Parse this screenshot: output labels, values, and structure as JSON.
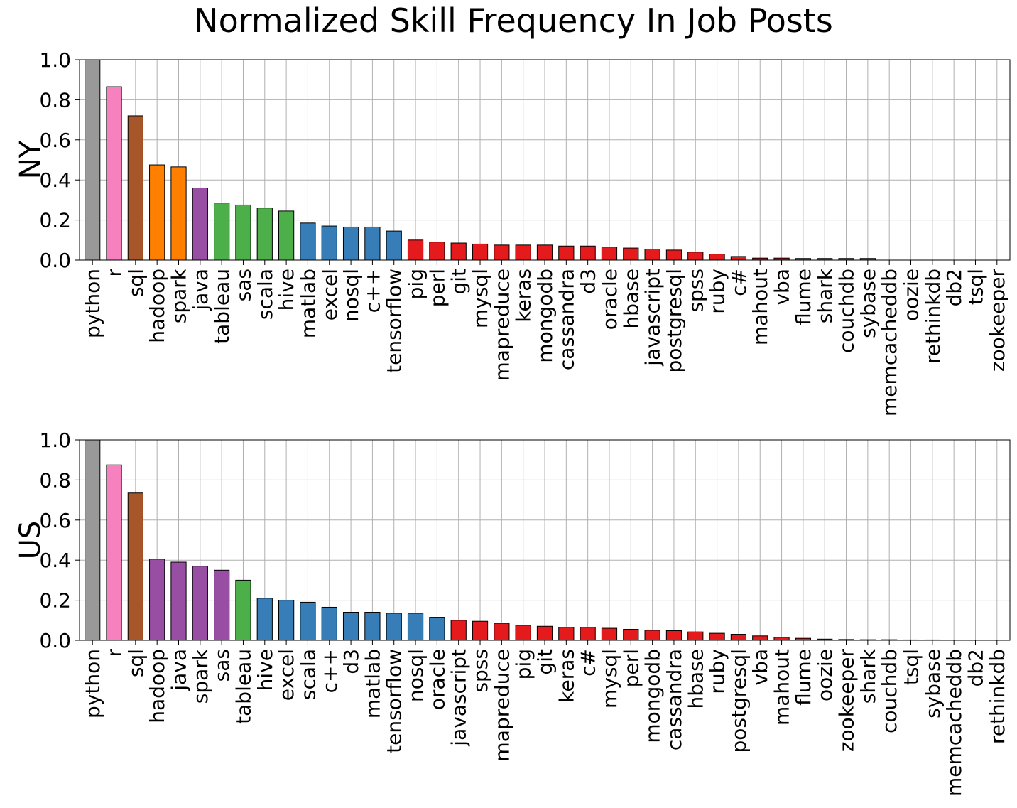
{
  "title": "Normalized Skill Frequency In Job Posts",
  "colors": {
    "gray": "#999999",
    "pink": "#f781bf",
    "brown": "#a65628",
    "orange": "#ff7f00",
    "purple": "#984ea3",
    "green": "#4daf4a",
    "blue": "#377eb8",
    "red": "#e41a1c"
  },
  "chart_data": [
    {
      "type": "bar",
      "title": "Normalized Skill Frequency In Job Posts",
      "ylabel": "NY",
      "xlabel": "",
      "ylim": [
        0,
        1.0
      ],
      "yticks": [
        0.0,
        0.2,
        0.4,
        0.6,
        0.8,
        1.0
      ],
      "ytick_labels": [
        "0.0",
        "0.2",
        "0.4",
        "0.6",
        "0.8",
        "1.0"
      ],
      "grid": true,
      "categories": [
        "python",
        "r",
        "sql",
        "hadoop",
        "spark",
        "java",
        "tableau",
        "sas",
        "scala",
        "hive",
        "matlab",
        "excel",
        "nosql",
        "c++",
        "tensorflow",
        "pig",
        "perl",
        "git",
        "mysql",
        "mapreduce",
        "keras",
        "mongodb",
        "cassandra",
        "d3",
        "oracle",
        "hbase",
        "javascript",
        "postgresql",
        "spss",
        "ruby",
        "c#",
        "mahout",
        "vba",
        "flume",
        "shark",
        "couchdb",
        "sybase",
        "memcacheddb",
        "oozie",
        "rethinkdb",
        "db2",
        "tsql",
        "zookeeper"
      ],
      "values": [
        1.0,
        0.865,
        0.72,
        0.475,
        0.465,
        0.36,
        0.285,
        0.275,
        0.26,
        0.245,
        0.185,
        0.17,
        0.165,
        0.165,
        0.145,
        0.1,
        0.09,
        0.085,
        0.08,
        0.075,
        0.075,
        0.075,
        0.07,
        0.07,
        0.065,
        0.06,
        0.055,
        0.05,
        0.04,
        0.03,
        0.018,
        0.01,
        0.01,
        0.008,
        0.008,
        0.008,
        0.008,
        0.0,
        0.0,
        0.0,
        0.0,
        0.0,
        0.0
      ],
      "bar_colors": [
        "gray",
        "pink",
        "brown",
        "orange",
        "orange",
        "purple",
        "green",
        "green",
        "green",
        "green",
        "blue",
        "blue",
        "blue",
        "blue",
        "blue",
        "red",
        "red",
        "red",
        "red",
        "red",
        "red",
        "red",
        "red",
        "red",
        "red",
        "red",
        "red",
        "red",
        "red",
        "red",
        "red",
        "red",
        "red",
        "red",
        "red",
        "red",
        "red",
        "red",
        "red",
        "red",
        "red",
        "red",
        "red"
      ]
    },
    {
      "type": "bar",
      "ylabel": "US",
      "xlabel": "",
      "ylim": [
        0,
        1.0
      ],
      "yticks": [
        0.0,
        0.2,
        0.4,
        0.6,
        0.8,
        1.0
      ],
      "ytick_labels": [
        "0.0",
        "0.2",
        "0.4",
        "0.6",
        "0.8",
        "1.0"
      ],
      "grid": true,
      "categories": [
        "python",
        "r",
        "sql",
        "hadoop",
        "java",
        "spark",
        "sas",
        "tableau",
        "hive",
        "excel",
        "scala",
        "c++",
        "d3",
        "matlab",
        "tensorflow",
        "nosql",
        "oracle",
        "javascript",
        "spss",
        "mapreduce",
        "pig",
        "git",
        "keras",
        "c#",
        "mysql",
        "perl",
        "mongodb",
        "cassandra",
        "hbase",
        "ruby",
        "postgresql",
        "vba",
        "mahout",
        "flume",
        "oozie",
        "zookeeper",
        "shark",
        "couchdb",
        "tsql",
        "sybase",
        "memcacheddb",
        "db2",
        "rethinkdb"
      ],
      "values": [
        1.0,
        0.875,
        0.735,
        0.405,
        0.39,
        0.37,
        0.35,
        0.3,
        0.21,
        0.2,
        0.19,
        0.165,
        0.14,
        0.14,
        0.135,
        0.135,
        0.115,
        0.1,
        0.095,
        0.085,
        0.075,
        0.07,
        0.065,
        0.065,
        0.06,
        0.055,
        0.05,
        0.048,
        0.042,
        0.035,
        0.03,
        0.022,
        0.015,
        0.01,
        0.006,
        0.004,
        0.003,
        0.003,
        0.002,
        0.002,
        0.0,
        0.0,
        0.0
      ],
      "bar_colors": [
        "gray",
        "pink",
        "brown",
        "purple",
        "purple",
        "purple",
        "purple",
        "green",
        "blue",
        "blue",
        "blue",
        "blue",
        "blue",
        "blue",
        "blue",
        "blue",
        "blue",
        "red",
        "red",
        "red",
        "red",
        "red",
        "red",
        "red",
        "red",
        "red",
        "red",
        "red",
        "red",
        "red",
        "red",
        "red",
        "red",
        "red",
        "red",
        "red",
        "red",
        "red",
        "red",
        "red",
        "red",
        "red",
        "red"
      ]
    }
  ]
}
